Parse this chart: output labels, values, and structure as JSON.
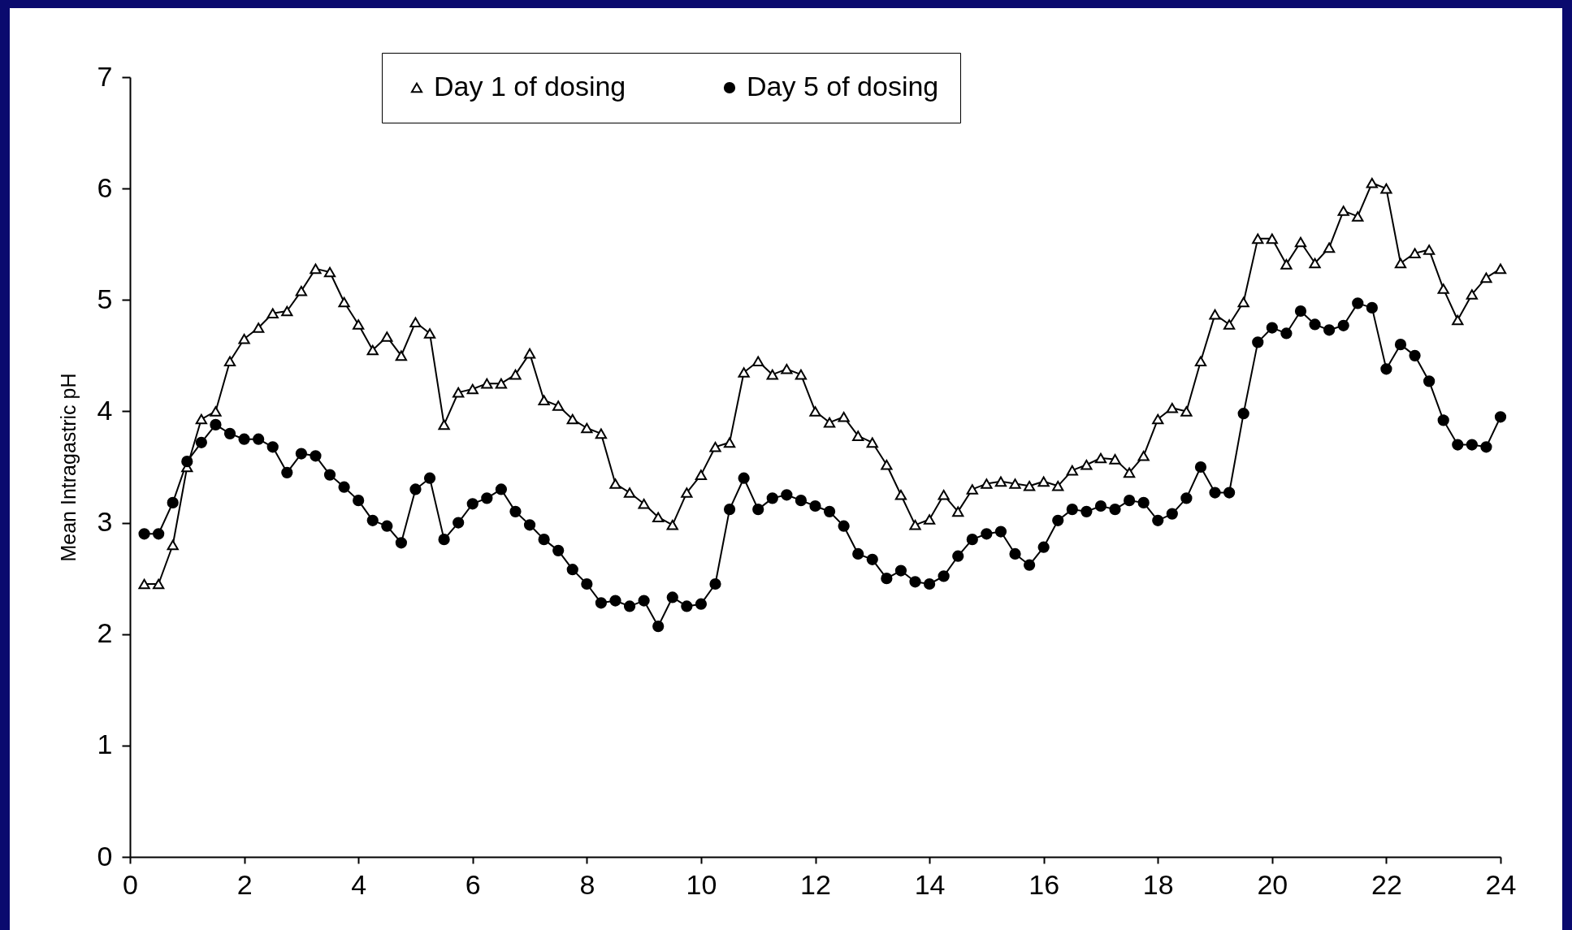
{
  "chart_data": {
    "type": "line",
    "ylabel": "Mean Intragastric pH",
    "x": [
      0.25,
      0.5,
      0.75,
      1,
      1.25,
      1.5,
      1.75,
      2,
      2.25,
      2.5,
      2.75,
      3,
      3.25,
      3.5,
      3.75,
      4,
      4.25,
      4.5,
      4.75,
      5,
      5.25,
      5.5,
      5.75,
      6,
      6.25,
      6.5,
      6.75,
      7,
      7.25,
      7.5,
      7.75,
      8,
      8.25,
      8.5,
      8.75,
      9,
      9.25,
      9.5,
      9.75,
      10,
      10.25,
      10.5,
      10.75,
      11,
      11.25,
      11.5,
      11.75,
      12,
      12.25,
      12.5,
      12.75,
      13,
      13.25,
      13.5,
      13.75,
      14,
      14.25,
      14.5,
      14.75,
      15,
      15.25,
      15.5,
      15.75,
      16,
      16.25,
      16.5,
      16.75,
      17,
      17.25,
      17.5,
      17.75,
      18,
      18.25,
      18.5,
      18.75,
      19,
      19.25,
      19.5,
      19.75,
      20,
      20.25,
      20.5,
      20.75,
      21,
      21.25,
      21.5,
      21.75,
      22,
      22.25,
      22.5,
      22.75,
      23,
      23.25,
      23.5,
      23.75,
      24
    ],
    "series": [
      {
        "name": "Day 1 of dosing",
        "color": "#000000",
        "marker": "triangle",
        "values": [
          2.45,
          2.45,
          2.8,
          3.5,
          3.93,
          4.0,
          4.45,
          4.65,
          4.75,
          4.88,
          4.9,
          5.08,
          5.28,
          5.25,
          4.98,
          4.78,
          4.55,
          4.67,
          4.5,
          4.8,
          4.7,
          3.88,
          4.17,
          4.2,
          4.25,
          4.25,
          4.33,
          4.52,
          4.1,
          4.05,
          3.93,
          3.85,
          3.8,
          3.35,
          3.27,
          3.17,
          3.05,
          2.98,
          3.27,
          3.43,
          3.68,
          3.72,
          4.35,
          4.45,
          4.33,
          4.38,
          4.33,
          4.0,
          3.9,
          3.95,
          3.78,
          3.72,
          3.52,
          3.25,
          2.98,
          3.03,
          3.25,
          3.1,
          3.3,
          3.35,
          3.37,
          3.35,
          3.33,
          3.37,
          3.33,
          3.47,
          3.52,
          3.58,
          3.57,
          3.45,
          3.6,
          3.93,
          4.03,
          4.0,
          4.45,
          4.87,
          4.78,
          4.98,
          5.55,
          5.55,
          5.32,
          5.52,
          5.33,
          5.47,
          5.8,
          5.75,
          6.05,
          6.0,
          5.33,
          5.42,
          5.45,
          5.1,
          4.82,
          5.05,
          5.2,
          5.28
        ]
      },
      {
        "name": "Day 5 of dosing",
        "color": "#000000",
        "marker": "circle",
        "values": [
          2.9,
          2.9,
          3.18,
          3.55,
          3.72,
          3.88,
          3.8,
          3.75,
          3.75,
          3.68,
          3.45,
          3.62,
          3.6,
          3.43,
          3.32,
          3.2,
          3.02,
          2.97,
          2.82,
          3.3,
          3.4,
          2.85,
          3.0,
          3.17,
          3.22,
          3.3,
          3.1,
          2.98,
          2.85,
          2.75,
          2.58,
          2.45,
          2.28,
          2.3,
          2.25,
          2.3,
          2.07,
          2.33,
          2.25,
          2.27,
          2.45,
          3.12,
          3.4,
          3.12,
          3.22,
          3.25,
          3.2,
          3.15,
          3.1,
          2.97,
          2.72,
          2.67,
          2.5,
          2.57,
          2.47,
          2.45,
          2.52,
          2.7,
          2.85,
          2.9,
          2.92,
          2.72,
          2.62,
          2.78,
          3.02,
          3.12,
          3.1,
          3.15,
          3.12,
          3.2,
          3.18,
          3.02,
          3.08,
          3.22,
          3.5,
          3.27,
          3.27,
          3.98,
          4.62,
          4.75,
          4.7,
          4.9,
          4.78,
          4.73,
          4.77,
          4.97,
          4.93,
          4.38,
          4.6,
          4.5,
          4.27,
          3.92,
          3.7,
          3.7,
          3.68,
          3.95
        ]
      }
    ],
    "xlim": [
      0,
      24
    ],
    "xticks": [
      0,
      2,
      4,
      6,
      8,
      10,
      12,
      14,
      16,
      18,
      20,
      22,
      24
    ],
    "ylim": [
      0,
      7
    ],
    "yticks": [
      0,
      1,
      2,
      3,
      4,
      5,
      6,
      7
    ],
    "grid": false,
    "legend": "top",
    "line_style": "solid"
  }
}
